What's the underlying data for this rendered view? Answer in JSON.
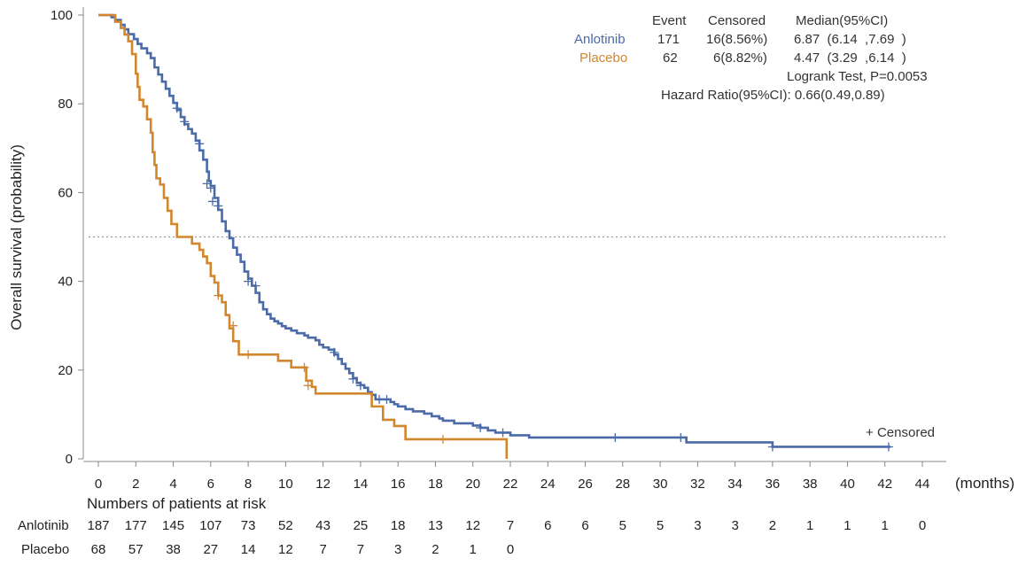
{
  "chart_data": {
    "type": "line",
    "title": "",
    "xlabel": "(months)",
    "ylabel": "Overall survival (probability)",
    "xlim": [
      0,
      44
    ],
    "ylim": [
      0,
      100
    ],
    "x_ticks": [
      0,
      2,
      4,
      6,
      8,
      10,
      12,
      14,
      16,
      18,
      20,
      22,
      24,
      26,
      28,
      30,
      32,
      34,
      36,
      38,
      40,
      42,
      44
    ],
    "y_ticks": [
      0,
      20,
      40,
      60,
      80,
      100
    ],
    "reference_line": {
      "y": 50,
      "style": "dotted"
    },
    "censor_legend": "+ Censored",
    "series": [
      {
        "name": "Anlotinib",
        "color": "#4a6aa8",
        "steps": [
          [
            0,
            100
          ],
          [
            0.5,
            100
          ],
          [
            0.7,
            99.5
          ],
          [
            0.9,
            98.9
          ],
          [
            1.2,
            97.8
          ],
          [
            1.4,
            96.8
          ],
          [
            1.6,
            95.7
          ],
          [
            1.9,
            94.6
          ],
          [
            2.1,
            93.5
          ],
          [
            2.3,
            92.5
          ],
          [
            2.6,
            91.4
          ],
          [
            2.8,
            90.3
          ],
          [
            3.0,
            88.2
          ],
          [
            3.2,
            86.6
          ],
          [
            3.4,
            85.0
          ],
          [
            3.6,
            83.4
          ],
          [
            3.8,
            81.8
          ],
          [
            4.0,
            80.2
          ],
          [
            4.2,
            78.6
          ],
          [
            4.4,
            77.0
          ],
          [
            4.6,
            75.4
          ],
          [
            4.8,
            74.3
          ],
          [
            5.0,
            73.3
          ],
          [
            5.2,
            71.7
          ],
          [
            5.4,
            69.5
          ],
          [
            5.6,
            67.4
          ],
          [
            5.8,
            64.7
          ],
          [
            5.9,
            62.6
          ],
          [
            6.0,
            61.5
          ],
          [
            6.2,
            58.8
          ],
          [
            6.4,
            56.1
          ],
          [
            6.6,
            53.5
          ],
          [
            6.8,
            51.3
          ],
          [
            7.0,
            49.7
          ],
          [
            7.2,
            47.6
          ],
          [
            7.4,
            46.0
          ],
          [
            7.6,
            44.4
          ],
          [
            7.8,
            42.2
          ],
          [
            8.0,
            40.6
          ],
          [
            8.2,
            39.0
          ],
          [
            8.4,
            37.4
          ],
          [
            8.6,
            35.3
          ],
          [
            8.8,
            33.7
          ],
          [
            9.0,
            32.6
          ],
          [
            9.2,
            31.6
          ],
          [
            9.4,
            31.0
          ],
          [
            9.6,
            30.5
          ],
          [
            9.8,
            29.9
          ],
          [
            10.0,
            29.4
          ],
          [
            10.3,
            28.9
          ],
          [
            10.6,
            28.3
          ],
          [
            11.0,
            27.8
          ],
          [
            11.2,
            27.3
          ],
          [
            11.6,
            26.7
          ],
          [
            11.8,
            25.7
          ],
          [
            12.0,
            25.1
          ],
          [
            12.3,
            24.6
          ],
          [
            12.6,
            23.5
          ],
          [
            12.8,
            22.5
          ],
          [
            13.0,
            21.4
          ],
          [
            13.2,
            20.3
          ],
          [
            13.4,
            19.3
          ],
          [
            13.6,
            18.2
          ],
          [
            13.8,
            17.1
          ],
          [
            14.0,
            16.6
          ],
          [
            14.2,
            16.0
          ],
          [
            14.4,
            15.0
          ],
          [
            14.6,
            14.4
          ],
          [
            14.8,
            13.4
          ],
          [
            15.6,
            12.8
          ],
          [
            15.8,
            12.3
          ],
          [
            16.0,
            11.8
          ],
          [
            16.4,
            11.2
          ],
          [
            16.8,
            10.7
          ],
          [
            17.4,
            10.2
          ],
          [
            17.8,
            9.6
          ],
          [
            18.2,
            9.1
          ],
          [
            18.4,
            8.6
          ],
          [
            19.0,
            8.0
          ],
          [
            20.0,
            7.5
          ],
          [
            20.4,
            7.0
          ],
          [
            20.8,
            6.4
          ],
          [
            21.2,
            5.9
          ],
          [
            22.0,
            5.3
          ],
          [
            23.0,
            4.8
          ],
          [
            31.4,
            3.7
          ],
          [
            36.0,
            2.7
          ],
          [
            42.3,
            2.7
          ]
        ],
        "censors": [
          [
            4.2,
            79
          ],
          [
            4.6,
            76
          ],
          [
            5.4,
            71
          ],
          [
            5.8,
            62
          ],
          [
            6.0,
            61
          ],
          [
            6.1,
            58
          ],
          [
            6.4,
            57
          ],
          [
            8.0,
            40
          ],
          [
            8.4,
            39
          ],
          [
            12.6,
            24
          ],
          [
            13.6,
            18
          ],
          [
            14.0,
            16.5
          ],
          [
            15.0,
            13.4
          ],
          [
            15.4,
            13.4
          ],
          [
            20.4,
            7.0
          ],
          [
            21.6,
            5.9
          ],
          [
            27.6,
            4.8
          ],
          [
            31.1,
            4.8
          ],
          [
            36.0,
            2.7
          ],
          [
            42.2,
            2.7
          ]
        ]
      },
      {
        "name": "Placebo",
        "color": "#d2862e",
        "steps": [
          [
            0,
            100
          ],
          [
            0.7,
            100
          ],
          [
            0.9,
            98.5
          ],
          [
            1.2,
            97.1
          ],
          [
            1.4,
            95.6
          ],
          [
            1.6,
            94.1
          ],
          [
            1.8,
            91.2
          ],
          [
            2.0,
            86.8
          ],
          [
            2.1,
            83.8
          ],
          [
            2.2,
            80.9
          ],
          [
            2.4,
            79.4
          ],
          [
            2.6,
            76.5
          ],
          [
            2.8,
            73.5
          ],
          [
            2.9,
            69.1
          ],
          [
            3.0,
            66.2
          ],
          [
            3.1,
            63.2
          ],
          [
            3.3,
            61.8
          ],
          [
            3.5,
            58.8
          ],
          [
            3.7,
            55.9
          ],
          [
            3.9,
            52.9
          ],
          [
            4.2,
            50.0
          ],
          [
            5.0,
            48.5
          ],
          [
            5.4,
            47.1
          ],
          [
            5.6,
            45.6
          ],
          [
            5.8,
            44.1
          ],
          [
            6.0,
            41.2
          ],
          [
            6.2,
            39.7
          ],
          [
            6.4,
            36.8
          ],
          [
            6.6,
            35.3
          ],
          [
            6.8,
            32.4
          ],
          [
            7.0,
            29.4
          ],
          [
            7.2,
            26.5
          ],
          [
            7.5,
            23.5
          ],
          [
            9.6,
            22.1
          ],
          [
            10.3,
            20.6
          ],
          [
            11.1,
            17.6
          ],
          [
            11.4,
            16.2
          ],
          [
            11.6,
            14.7
          ],
          [
            14.6,
            11.8
          ],
          [
            15.2,
            8.8
          ],
          [
            15.8,
            7.4
          ],
          [
            16.4,
            4.4
          ],
          [
            21.8,
            0
          ]
        ],
        "censors": [
          [
            6.4,
            36.8
          ],
          [
            7.2,
            30
          ],
          [
            8.0,
            23.5
          ],
          [
            11.0,
            20.6
          ],
          [
            11.2,
            16.5
          ],
          [
            18.4,
            4.4
          ]
        ]
      }
    ]
  },
  "stats": {
    "header": {
      "event": "Event",
      "censored": "Censored",
      "median": "Median(95%CI)"
    },
    "rows": [
      {
        "name": "Anlotinib",
        "event": "171",
        "censored": "16(8.56%)",
        "median": "6.87  (6.14  ,7.69  )",
        "color": "#4a6aa8"
      },
      {
        "name": "Placebo",
        "event": "62",
        "censored": "6(8.82%)",
        "median": "4.47  (3.29  ,6.14  )",
        "color": "#d2862e"
      }
    ],
    "logrank": "Logrank Test, P=0.0053",
    "hazard": "Hazard Ratio(95%CI): 0.66(0.49,0.89)"
  },
  "risk_table": {
    "title": "Numbers of patients at risk",
    "rows": [
      {
        "label": "Anlotinib",
        "values": [
          "187",
          "177",
          "145",
          "107",
          "73",
          "52",
          "43",
          "25",
          "18",
          "13",
          "12",
          "7",
          "6",
          "6",
          "5",
          "5",
          "3",
          "3",
          "2",
          "1",
          "1",
          "1",
          "0"
        ]
      },
      {
        "label": "Placebo",
        "values": [
          "68",
          "57",
          "38",
          "27",
          "14",
          "12",
          "7",
          "7",
          "3",
          "2",
          "1",
          "0"
        ]
      }
    ]
  }
}
